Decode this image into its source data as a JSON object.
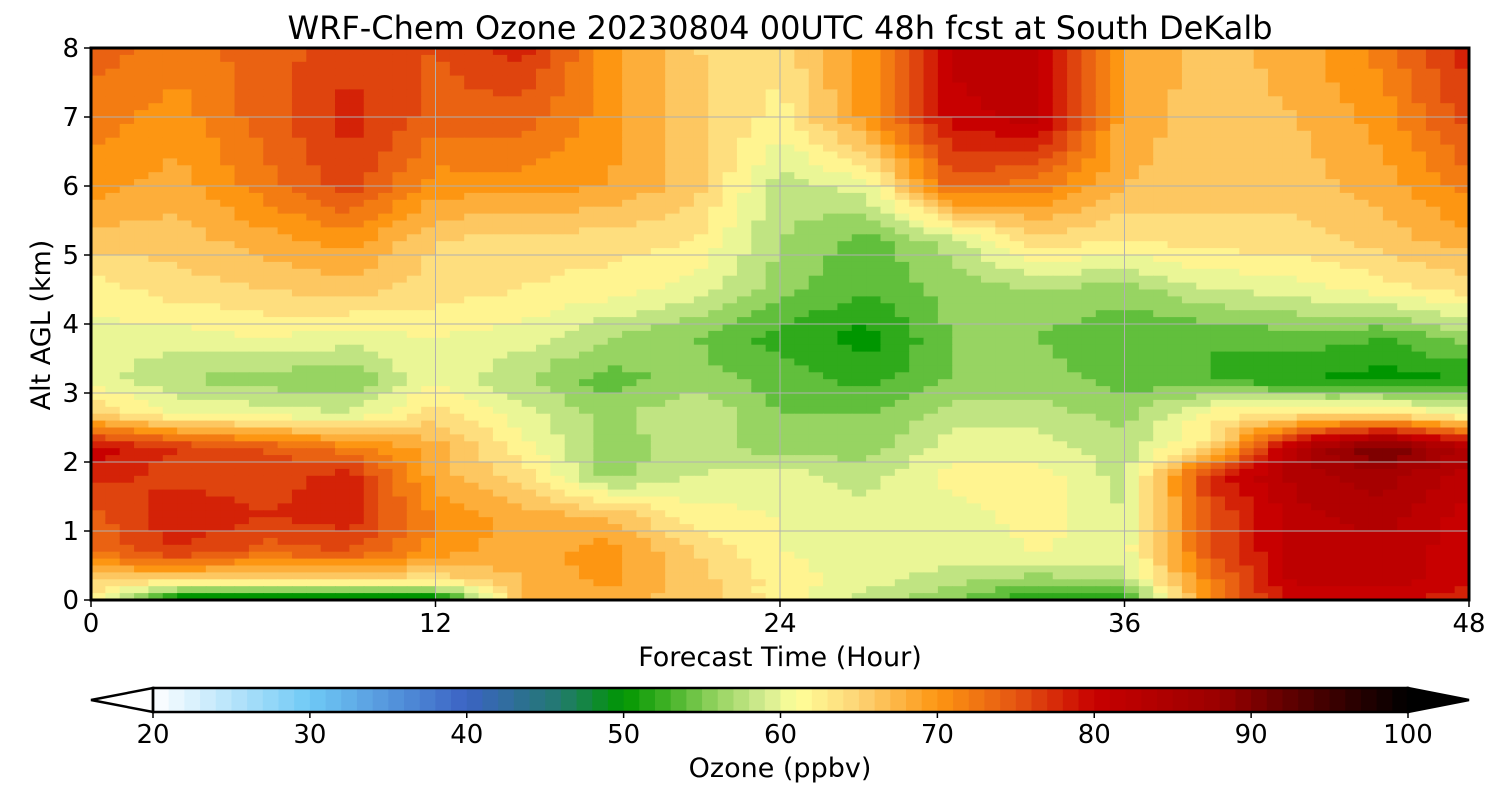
{
  "chart_data": {
    "type": "heatmap",
    "title": "WRF-Chem Ozone  20230804 00UTC 48h fcst at South DeKalb",
    "xlabel": "Forecast Time (Hour)",
    "ylabel": "Alt AGL (km)",
    "xlim": [
      0,
      48
    ],
    "ylim": [
      0,
      8
    ],
    "x_ticks": [
      0,
      12,
      24,
      36,
      48
    ],
    "y_ticks": [
      0,
      1,
      2,
      3,
      4,
      5,
      6,
      7,
      8
    ],
    "grid": true,
    "x_hours": [
      0,
      3,
      6,
      9,
      12,
      15,
      18,
      21,
      24,
      27,
      30,
      33,
      36,
      39,
      42,
      45,
      48
    ],
    "z_km": [
      0,
      0.05,
      0.3,
      0.7,
      1.2,
      1.8,
      2.2,
      2.7,
      3.2,
      3.8,
      4.5,
      5.2,
      6.0,
      7.0,
      8.0
    ],
    "ozone_ppbv": [
      [
        61,
        50,
        50,
        48,
        49,
        66,
        68,
        66,
        62,
        58,
        56,
        52,
        52,
        70,
        80,
        80,
        78
      ],
      [
        62,
        51,
        50,
        49,
        51,
        67,
        68,
        66,
        62,
        58,
        56,
        51,
        52,
        72,
        80,
        80,
        78
      ],
      [
        66,
        65,
        64,
        64,
        64,
        67,
        70,
        66,
        62,
        60,
        58,
        56,
        58,
        72,
        82,
        82,
        80
      ],
      [
        73,
        77,
        74,
        75,
        70,
        68,
        70,
        65,
        61,
        60,
        60,
        61,
        60,
        75,
        82,
        82,
        80
      ],
      [
        74,
        79,
        77,
        78,
        71,
        68,
        67,
        62,
        61,
        60,
        60,
        62,
        59,
        75,
        82,
        84,
        80
      ],
      [
        78,
        76,
        76,
        78,
        68,
        64,
        56,
        59,
        60,
        58,
        62,
        62,
        58,
        78,
        84,
        86,
        82
      ],
      [
        80,
        77,
        75,
        72,
        68,
        62,
        56,
        58,
        56,
        56,
        60,
        60,
        58,
        64,
        84,
        92,
        84
      ],
      [
        65,
        61,
        60,
        59,
        64,
        60,
        56,
        59,
        55,
        55,
        58,
        58,
        56,
        62,
        63,
        64,
        60
      ],
      [
        60,
        57,
        56,
        55,
        61,
        57,
        54,
        56,
        54,
        52,
        55,
        56,
        54,
        53,
        51,
        50,
        51
      ],
      [
        60,
        60,
        61,
        60,
        61,
        60,
        57,
        55,
        52,
        50,
        55,
        55,
        53,
        53,
        54,
        53,
        56
      ],
      [
        62,
        64,
        65,
        66,
        64,
        63,
        62,
        60,
        56,
        53,
        56,
        57,
        56,
        59,
        60,
        62,
        64
      ],
      [
        66,
        66,
        68,
        70,
        65,
        64,
        64,
        63,
        57,
        54,
        58,
        64,
        63,
        64,
        64,
        66,
        68
      ],
      [
        70,
        68,
        72,
        76,
        70,
        70,
        69,
        66,
        58,
        60,
        74,
        72,
        67,
        66,
        66,
        68,
        72
      ],
      [
        72,
        70,
        74,
        78,
        74,
        74,
        70,
        66,
        62,
        70,
        80,
        82,
        68,
        66,
        67,
        70,
        76
      ],
      [
        74,
        72,
        74,
        76,
        75,
        78,
        70,
        65,
        64,
        70,
        82,
        82,
        69,
        66,
        68,
        72,
        78
      ]
    ],
    "colorbar": {
      "label": "Ozone  (ppbv)",
      "range": [
        20,
        100
      ],
      "ticks": [
        20,
        30,
        40,
        50,
        60,
        70,
        80,
        90,
        100
      ],
      "extend": "both",
      "stops": [
        {
          "v": 20,
          "c": "#ffffff"
        },
        {
          "v": 30,
          "c": "#6fc9f5"
        },
        {
          "v": 40,
          "c": "#3b63c3"
        },
        {
          "v": 46,
          "c": "#227a6e"
        },
        {
          "v": 50,
          "c": "#009600"
        },
        {
          "v": 53,
          "c": "#46b429"
        },
        {
          "v": 56,
          "c": "#97d462"
        },
        {
          "v": 59,
          "c": "#d4ec92"
        },
        {
          "v": 61,
          "c": "#ffff99"
        },
        {
          "v": 65,
          "c": "#fdd375"
        },
        {
          "v": 70,
          "c": "#fd9612"
        },
        {
          "v": 75,
          "c": "#e55512"
        },
        {
          "v": 80,
          "c": "#c80000"
        },
        {
          "v": 88,
          "c": "#9a0000"
        },
        {
          "v": 94,
          "c": "#4a0000"
        },
        {
          "v": 100,
          "c": "#000000"
        }
      ]
    }
  }
}
